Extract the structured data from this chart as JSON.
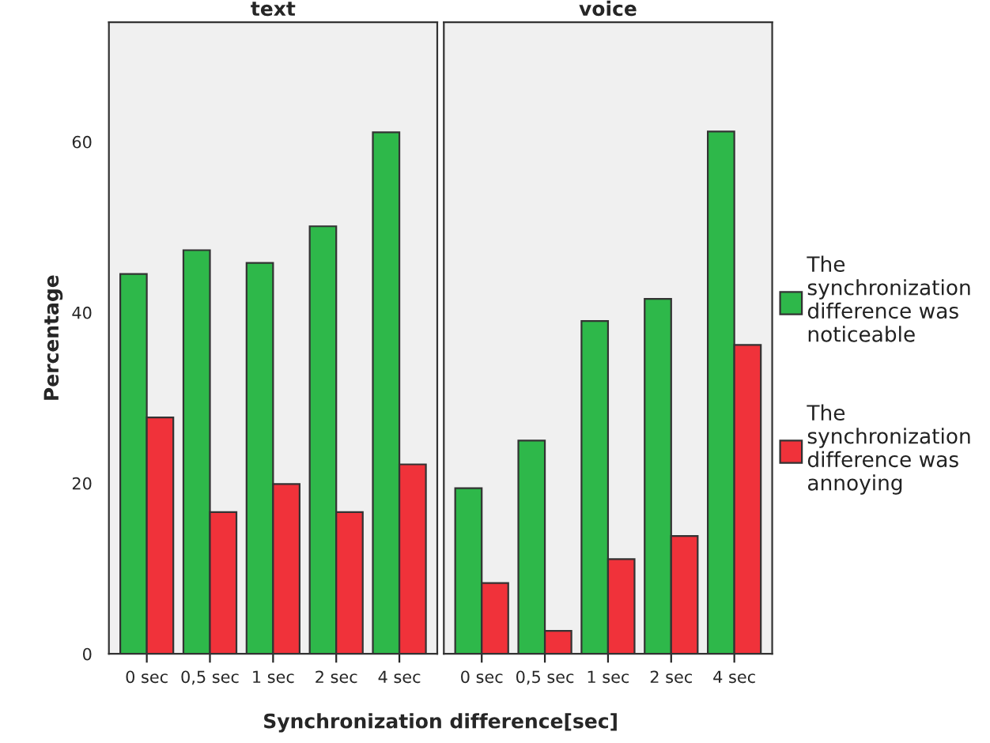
{
  "chart_data": [
    {
      "type": "bar",
      "title": "text",
      "ylabel": "Percentage",
      "xlabel": "Synchronization difference[sec]",
      "categories": [
        "0 sec",
        "0,5 sec",
        "1 sec",
        "2 sec",
        "4 sec"
      ],
      "ylim": [
        0,
        74
      ],
      "yticks": [
        0,
        20,
        40,
        60
      ],
      "grid": false,
      "series": [
        {
          "color": "#2eb84a",
          "values": [
            44.5,
            47.3,
            45.8,
            50.1,
            61.1
          ]
        },
        {
          "color": "#f0323a",
          "values": [
            27.7,
            16.6,
            19.9,
            16.6,
            22.2
          ]
        }
      ]
    },
    {
      "type": "bar",
      "title": "voice",
      "categories": [
        "0 sec",
        "0,5 sec",
        "1 sec",
        "2 sec",
        "4 sec"
      ],
      "ylim": [
        0,
        74
      ],
      "tick_labels": "x",
      "grid": false,
      "legend": "right",
      "series": [
        {
          "name": "The synchronization difference was noticeable",
          "color": "#2eb84a",
          "values": [
            19.4,
            25.0,
            39.0,
            41.6,
            61.2
          ]
        },
        {
          "name": "The synchronization difference was annoying",
          "color": "#f0323a",
          "values": [
            8.3,
            2.7,
            11.1,
            13.8,
            36.2
          ]
        }
      ]
    }
  ]
}
